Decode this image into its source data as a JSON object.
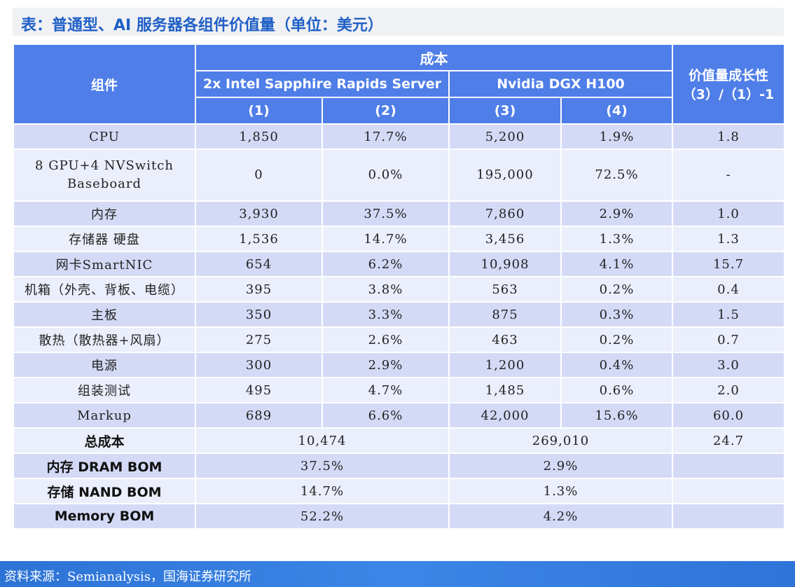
{
  "title": "表：普通型、AI 服务器各组件价值量（单位：美元）",
  "header": {
    "component": "组件",
    "cost": "成本",
    "server_a": "2x Intel Sapphire Rapids Server",
    "server_b": "Nvidia DGX H100",
    "growth_line1": "价值量成长性",
    "growth_line2": "（3）/（1）-1",
    "col1": "(1)",
    "col2": "(2)",
    "col3": "(3)",
    "col4": "(4)"
  },
  "rows": [
    {
      "label": "CPU",
      "c1": "1,850",
      "c2": "17.7%",
      "c3": "5,200",
      "c4": "1.9%",
      "growth": "1.8"
    },
    {
      "label": "8 GPU+4 NVSwitch Baseboard",
      "c1": "0",
      "c2": "0.0%",
      "c3": "195,000",
      "c4": "72.5%",
      "growth": "-"
    },
    {
      "label": "内存",
      "c1": "3,930",
      "c2": "37.5%",
      "c3": "7,860",
      "c4": "2.9%",
      "growth": "1.0"
    },
    {
      "label": "存储器 硬盘",
      "c1": "1,536",
      "c2": "14.7%",
      "c3": "3,456",
      "c4": "1.3%",
      "growth": "1.3"
    },
    {
      "label": "网卡SmartNIC",
      "c1": "654",
      "c2": "6.2%",
      "c3": "10,908",
      "c4": "4.1%",
      "growth": "15.7"
    },
    {
      "label": "机箱（外壳、背板、电缆）",
      "c1": "395",
      "c2": "3.8%",
      "c3": "563",
      "c4": "0.2%",
      "growth": "0.4"
    },
    {
      "label": "主板",
      "c1": "350",
      "c2": "3.3%",
      "c3": "875",
      "c4": "0.3%",
      "growth": "1.5"
    },
    {
      "label": "散热（散热器+风扇）",
      "c1": "275",
      "c2": "2.6%",
      "c3": "463",
      "c4": "0.2%",
      "growth": "0.7"
    },
    {
      "label": "电源",
      "c1": "300",
      "c2": "2.9%",
      "c3": "1,200",
      "c4": "0.4%",
      "growth": "3.0"
    },
    {
      "label": "组装测试",
      "c1": "495",
      "c2": "4.7%",
      "c3": "1,485",
      "c4": "0.6%",
      "growth": "2.0"
    },
    {
      "label": "Markup",
      "c1": "689",
      "c2": "6.6%",
      "c3": "42,000",
      "c4": "15.6%",
      "growth": "60.0"
    }
  ],
  "summary": [
    {
      "label": "总成本",
      "a": "10,474",
      "b": "269,010",
      "growth": "24.7"
    },
    {
      "label": "内存 DRAM BOM",
      "a": "37.5%",
      "b": "2.9%",
      "growth": ""
    },
    {
      "label": "存储 NAND BOM",
      "a": "14.7%",
      "b": "1.3%",
      "growth": ""
    },
    {
      "label": "Memory BOM",
      "a": "52.2%",
      "b": "4.2%",
      "growth": ""
    }
  ],
  "footer": "资料来源：Semianalysis，国海证券研究所",
  "colors": {
    "header_bg": "#4f7ee8",
    "row_odd": "#d4daf6",
    "row_even": "#ebeefb",
    "title": "#1f5fc6",
    "footer_bg": "#2d73d6"
  }
}
